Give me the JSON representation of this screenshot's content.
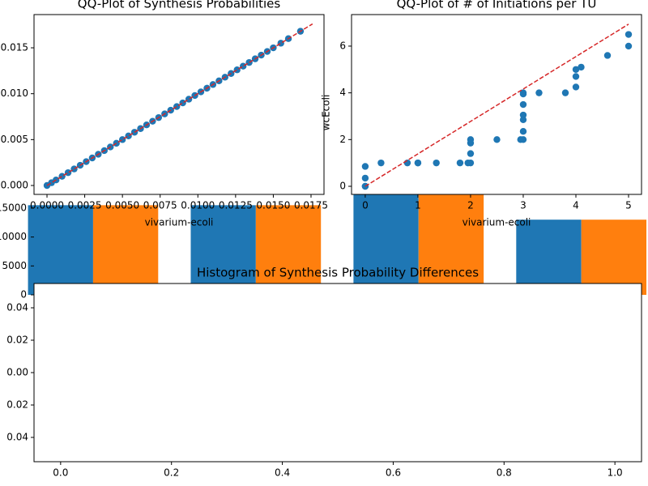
{
  "chart_data": [
    {
      "type": "bar",
      "categories": [
        null,
        null,
        null,
        null
      ],
      "series": [
        {
          "color": "#1f77b4",
          "values": [
            15500,
            15500,
            17500,
            13000
          ]
        },
        {
          "color": "#ff7f0e",
          "values": [
            15500,
            15500,
            17500,
            13000
          ]
        }
      ],
      "xlim": [
        -0.363,
        3.37
      ],
      "ylim": [
        0,
        17370
      ],
      "yticks": [
        0,
        5000,
        10000,
        15000
      ]
    },
    {
      "type": "scatter",
      "title": "QQ-Plot of Synthesis Probabilities",
      "xlabel": "vivarium-ecoli",
      "color": "#1f77b4",
      "x": [
        0,
        0.0003,
        0.0006,
        0.001,
        0.0014,
        0.0018,
        0.0022,
        0.0026,
        0.003,
        0.0034,
        0.0038,
        0.0042,
        0.0046,
        0.005,
        0.0054,
        0.0058,
        0.0062,
        0.0066,
        0.007,
        0.0074,
        0.0078,
        0.0082,
        0.0086,
        0.009,
        0.0094,
        0.0098,
        0.0102,
        0.0106,
        0.011,
        0.0114,
        0.0118,
        0.0122,
        0.0126,
        0.013,
        0.0134,
        0.0138,
        0.0142,
        0.0146,
        0.015,
        0.0155,
        0.016,
        0.0168
      ],
      "values": [
        0,
        0.0003,
        0.0006,
        0.001,
        0.0014,
        0.0018,
        0.0022,
        0.0026,
        0.003,
        0.0034,
        0.0038,
        0.0042,
        0.0046,
        0.005,
        0.0054,
        0.0058,
        0.0062,
        0.0066,
        0.007,
        0.0074,
        0.0078,
        0.0082,
        0.0086,
        0.009,
        0.0094,
        0.0098,
        0.0102,
        0.0106,
        0.011,
        0.0114,
        0.0118,
        0.0122,
        0.0126,
        0.013,
        0.0134,
        0.0138,
        0.0142,
        0.0146,
        0.015,
        0.0155,
        0.016,
        0.0168
      ],
      "reference_line": {
        "x": [
          0,
          0.0176
        ],
        "y": [
          0,
          0.0176
        ],
        "color": "#d62728"
      },
      "xlim": [
        -0.00086,
        0.01836
      ],
      "ylim": [
        -0.00097,
        0.01862
      ],
      "xticks": [
        {
          "value": 0,
          "label": "0.0000"
        },
        {
          "value": 0.0025,
          "label": "0.0025"
        },
        {
          "value": 0.005,
          "label": "0.0050"
        },
        {
          "value": 0.0075,
          "label": "0.0075"
        },
        {
          "value": 0.01,
          "label": "0.0100"
        },
        {
          "value": 0.0125,
          "label": "0.0125"
        },
        {
          "value": 0.015,
          "label": "0.0150"
        },
        {
          "value": 0.0175,
          "label": "0.0175"
        }
      ],
      "yticks": [
        {
          "value": 0,
          "label": "0.000"
        },
        0.005,
        {
          "value": 0.01,
          "label": "0.010"
        },
        0.015
      ]
    },
    {
      "type": "scatter",
      "title": "QQ-Plot of # of Initiations per TU",
      "xlabel": "vivarium-ecoli",
      "ylabel": "wcEcoli",
      "color": "#1f77b4",
      "x": [
        0,
        0,
        0,
        0,
        0.3,
        0.8,
        1,
        1,
        1.35,
        1.8,
        1.95,
        2,
        2,
        2,
        2,
        2.5,
        2.95,
        3,
        3,
        3,
        3,
        3,
        3,
        3,
        3.3,
        3.8,
        4,
        4,
        4,
        4.1,
        4.6,
        5,
        5
      ],
      "values": [
        0,
        0.85,
        0.35,
        0,
        1,
        1,
        1,
        1,
        1,
        1,
        1,
        1,
        1.4,
        1.85,
        2,
        2,
        2,
        2,
        2.35,
        2.85,
        3.05,
        3.5,
        3.95,
        4,
        4,
        4,
        4.25,
        4.7,
        5,
        5.1,
        5.6,
        6,
        6.5
      ],
      "reference_line": {
        "x": [
          0,
          5
        ],
        "y": [
          0,
          6.94
        ],
        "color": "#d62728"
      },
      "xlim": [
        -0.26,
        5.246
      ],
      "ylim": [
        -0.347,
        7.35
      ],
      "xticks": [
        0,
        1,
        2,
        3,
        4,
        5
      ],
      "yticks": [
        0,
        2,
        4,
        6
      ]
    },
    {
      "type": "histogram",
      "title": "Histogram of Synthesis Probability Differences",
      "xlim": [
        -0.048,
        1.048
      ],
      "ylim": [
        -0.055,
        0.055
      ],
      "xticks": [
        {
          "value": 0,
          "label": "0.0"
        },
        0.2,
        0.4,
        0.6,
        0.8,
        {
          "value": 1,
          "label": "1.0"
        }
      ],
      "yticks": [
        {
          "value": -0.04,
          "label": "0.04"
        },
        {
          "value": -0.02,
          "label": "0.02"
        },
        {
          "value": 0,
          "label": "0.00"
        },
        0.02,
        0.04
      ]
    }
  ]
}
